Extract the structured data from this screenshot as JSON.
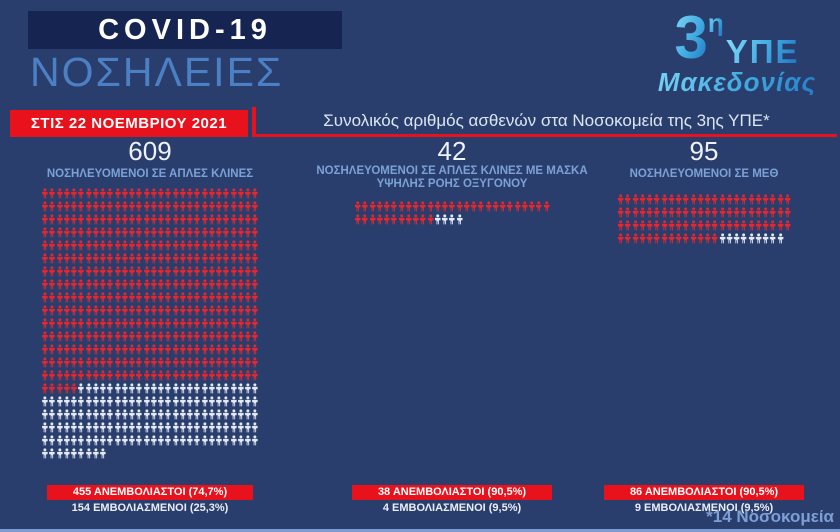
{
  "header": {
    "covid_title": "COVID-19",
    "page_subtitle": "ΝΟΣΗΛΕΙΕΣ"
  },
  "logo": {
    "number": "3",
    "sup": "η",
    "org": "ΥΠΕ",
    "region": "Μακεδονίας"
  },
  "date_banner": "ΣΤΙΣ 22 ΝΟΕΜΒΡΙΟΥ 2021",
  "footnote": "*14 Νοσοκομεία",
  "chart_data": {
    "type": "pictogram",
    "title": "Συνολικός αριθμός ασθενών στα Νοσοκομεία της 3ης ΥΠΕ*",
    "date": "ΣΤΙΣ 22 ΝΟΕΜΒΡΙΟΥ 2021",
    "unit": "1 icon = 1 patient",
    "colors": {
      "unvaccinated": "#e8262c",
      "vaccinated": "#e4eaf5"
    },
    "groups": [
      {
        "count": "609",
        "label": "ΝΟΣΗΛΕΥΟΜΕΝΟΙ ΣΕ ΑΠΛΕΣ ΚΛΙΝΕΣ",
        "total": 609,
        "unvaccinated": 455,
        "vaccinated": 154,
        "per_row": 30,
        "unvaccinated_label": "455 ΑΝΕΜΒΟΛΙΑΣΤΟΙ (74,7%)",
        "vaccinated_label": "154 ΕΜΒΟΛΙΑΣΜΕΝΟΙ (25,3%)"
      },
      {
        "count": "42",
        "label": "ΝΟΣΗΛΕΥΟΜΕΝΟΙ ΣΕ ΑΠΛΕΣ ΚΛΙΝΕΣ ΜΕ ΜΑΣΚΑ ΥΨΗΛΗΣ ΡΟΗΣ ΟΞΥΓΟΝΟΥ",
        "total": 42,
        "unvaccinated": 38,
        "vaccinated": 4,
        "per_row": 27,
        "unvaccinated_label": "38 ΑΝΕΜΒΟΛΙΑΣΤΟΙ (90,5%)",
        "vaccinated_label": "4 ΕΜΒΟΛΙΑΣΜΕΝΟΙ (9,5%)"
      },
      {
        "count": "95",
        "label": "ΝΟΣΗΛΕΥΟΜΕΝΟΙ ΣΕ ΜΕΘ",
        "total": 95,
        "unvaccinated": 86,
        "vaccinated": 9,
        "per_row": 24,
        "unvaccinated_label": "86 ΑΝΕΜΒΟΛΙΑΣΤΟΙ (90,5%)",
        "vaccinated_label": "9 ΕΜΒΟΛΙΑΣΜΕΝΟΙ (9,5%)"
      }
    ]
  }
}
